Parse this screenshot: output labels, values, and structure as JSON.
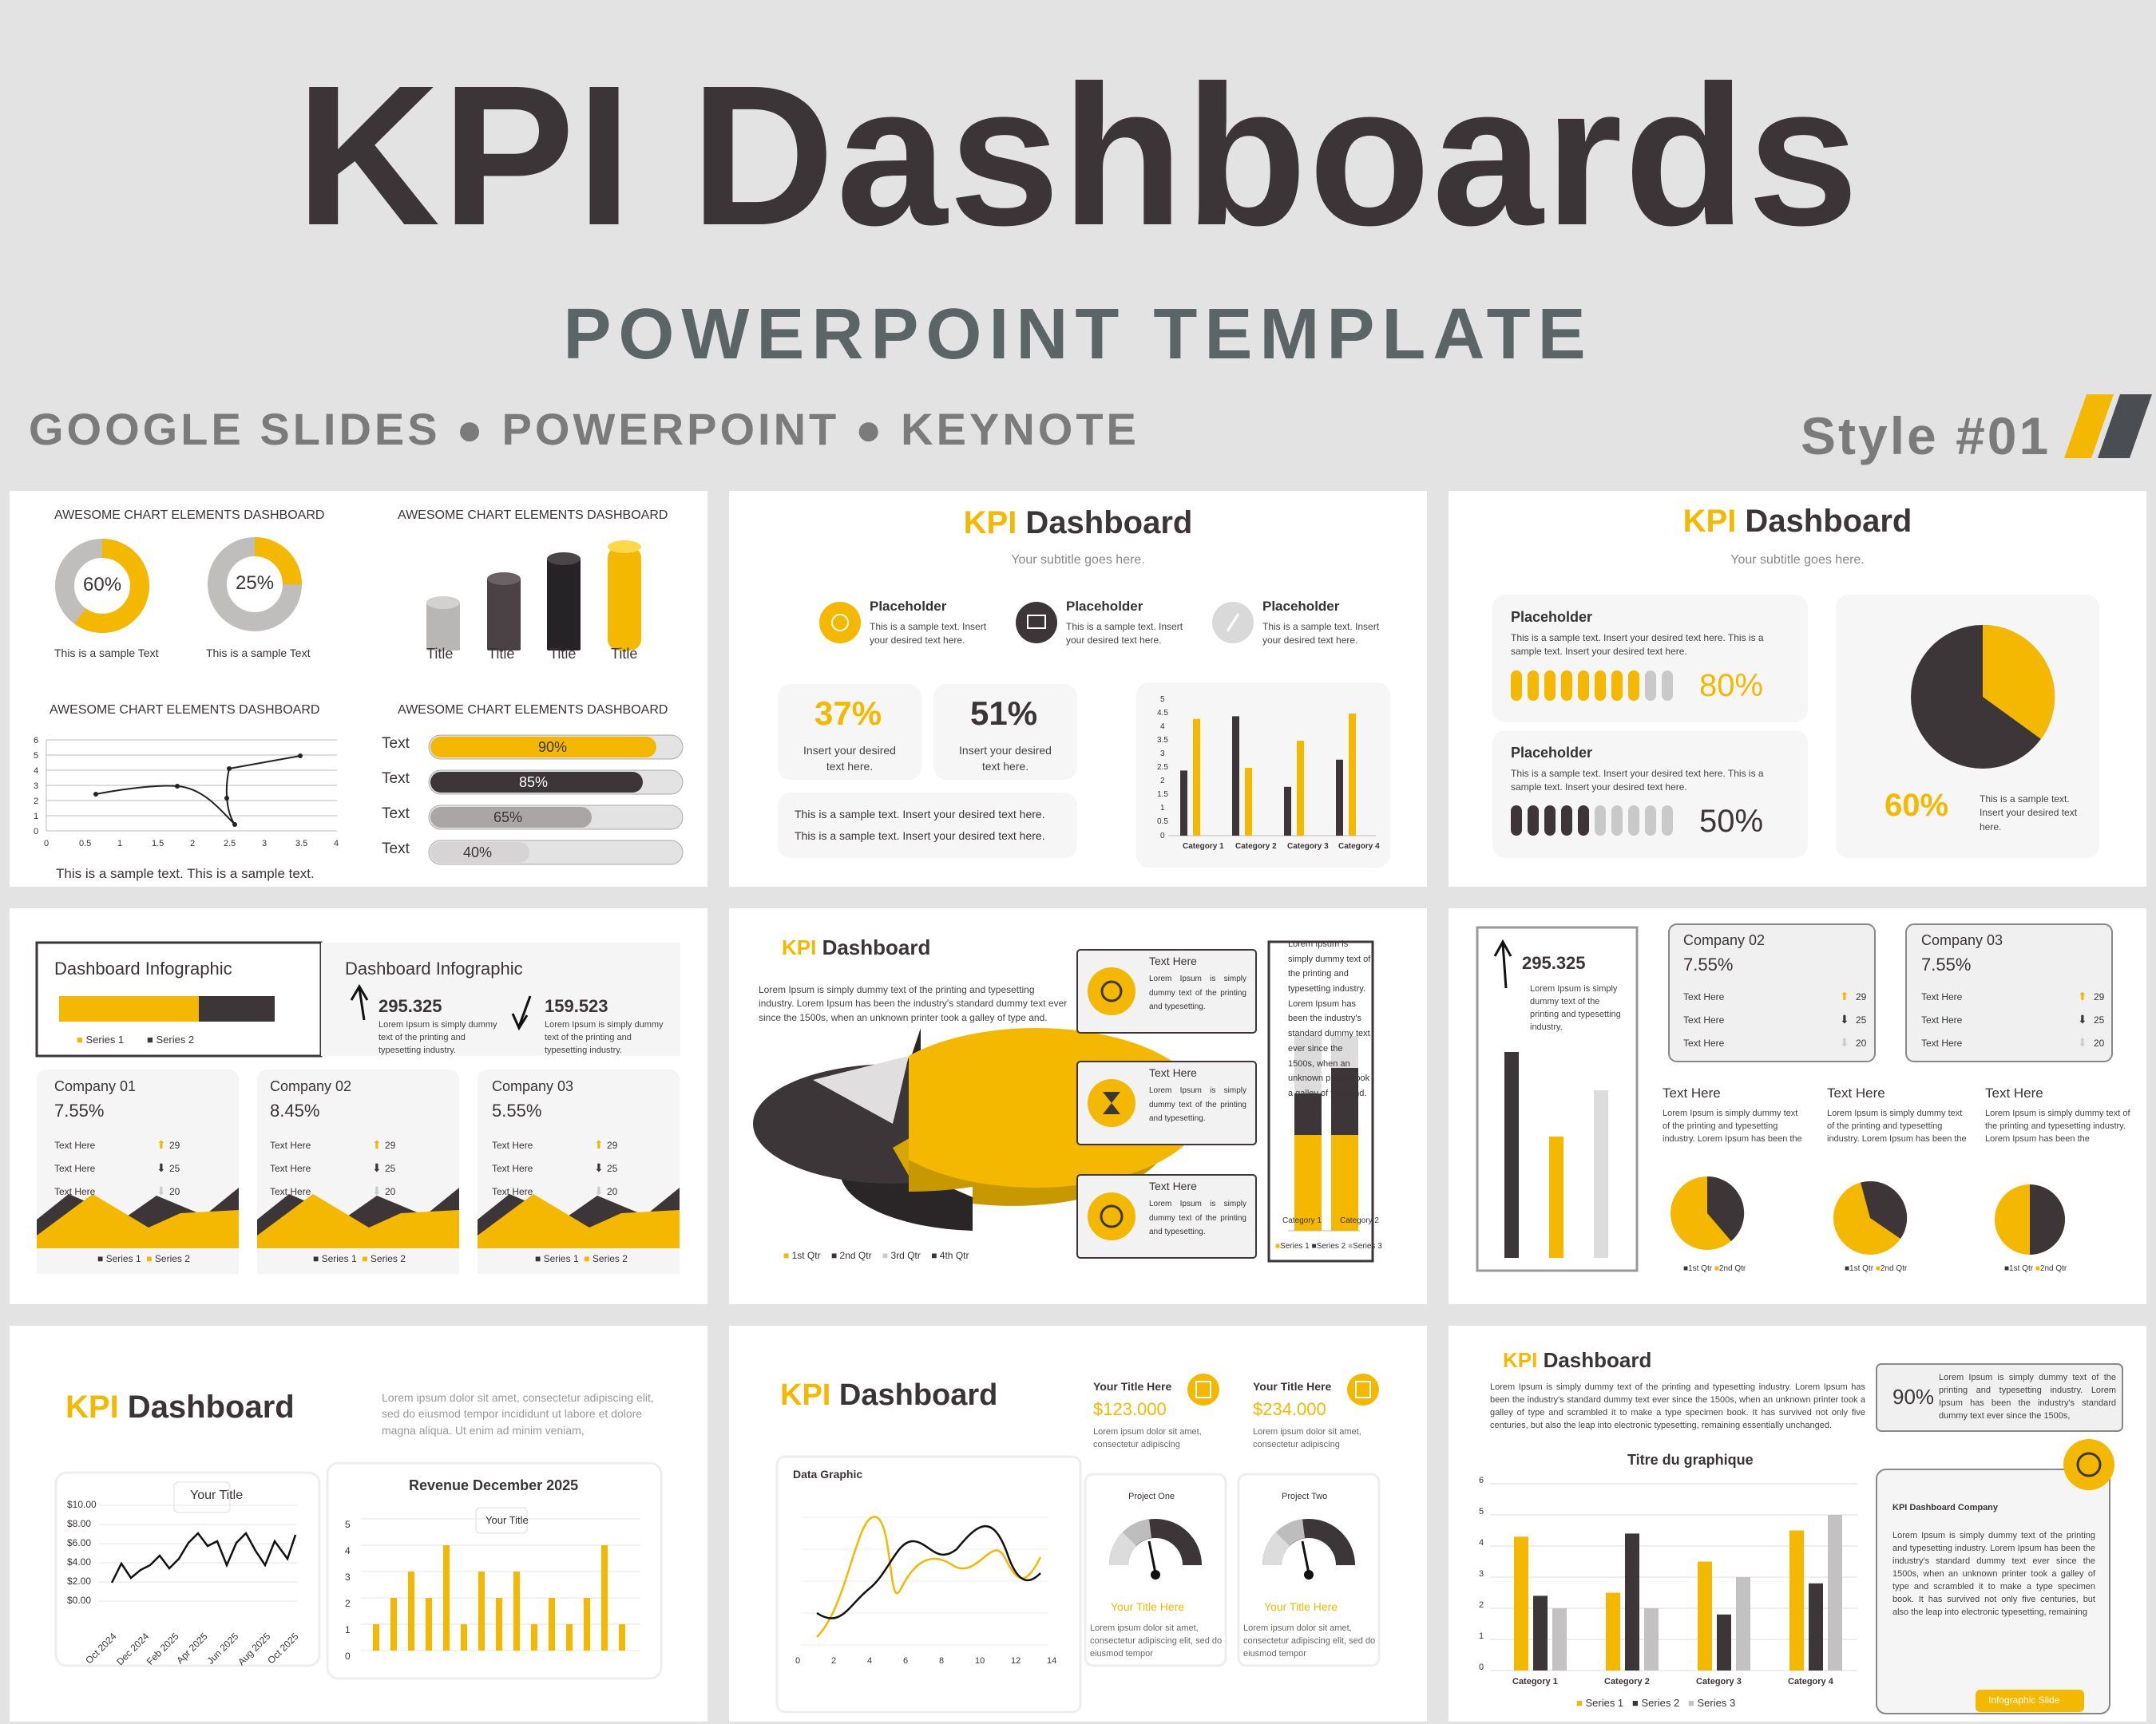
{
  "header": {
    "title": "KPI Dashboards",
    "subtitle": "POWERPOINT TEMPLATE",
    "platforms": "GOOGLE SLIDES ● POWERPOINT ● KEYNOTE",
    "style": "Style #01"
  },
  "colors": {
    "accent": "#f5b800",
    "dark": "#3b3537",
    "gray": "#b9b6b6",
    "light": "#d9d9d9"
  },
  "s1": {
    "heading": "AWESOME CHART ELEMENTS DASHBOARD",
    "donut1": "60%",
    "donut2": "25%",
    "sample": "This is a sample Text",
    "bar_label": "Title",
    "progress_label": "Text",
    "progress": [
      "90%",
      "85%",
      "65%",
      "40%"
    ],
    "footer": "This is a sample text.   This is a sample text."
  },
  "s2": {
    "title_hl": "KPI",
    "title": " Dashboard",
    "subtitle": "Your subtitle goes here.",
    "placeholder": "Placeholder",
    "placeholder_text": "This is a sample text. Insert your desired text here.",
    "kpi1": "37%",
    "kpi2": "51%",
    "kpi_text": "Insert your desired text here.",
    "note": "This is a sample text. Insert your desired text here.",
    "categories": [
      "Category 1",
      "Category 2",
      "Category 3",
      "Category 4"
    ]
  },
  "s3": {
    "title_hl": "KPI",
    "title": " Dashboard",
    "subtitle": "Your subtitle goes here.",
    "placeholder": "Placeholder",
    "text": "This is a sample text. Insert your desired text here. This is a sample text. Insert your desired text here.",
    "v1": "80%",
    "v2": "50%",
    "pie_pct": "60%",
    "pie_text": "This is a sample text. Insert your desired text here."
  },
  "s4": {
    "heading": "Dashboard Infographic",
    "n1": "295.325",
    "n2": "159.523",
    "lorem": "Lorem Ipsum is simply dummy text of the printing and typesetting industry.",
    "series1": "Series 1",
    "series2": "Series 2",
    "companies": [
      {
        "name": "Company 01",
        "pct": "7.55%"
      },
      {
        "name": "Company 02",
        "pct": "8.45%"
      },
      {
        "name": "Company 03",
        "pct": "5.55%"
      }
    ],
    "text_here": "Text Here",
    "vals": [
      "29",
      "25",
      "20"
    ]
  },
  "s5": {
    "title_hl": "KPI",
    "title": " Dashboard",
    "para": "Lorem Ipsum is simply dummy text of the printing and typesetting industry. Lorem Ipsum has been the industry's standard dummy text ever since the 1500s, when an unknown printer took a galley of type and.",
    "text_here": "Text Here",
    "card_text": "Lorem Ipsum is simply dummy text of the printing and typesetting.",
    "legend": [
      "1st Qtr",
      "2nd Qtr",
      "3rd Qtr",
      "4th Qtr"
    ],
    "cats": [
      "Category 1",
      "Category 2"
    ],
    "series": [
      "Series 1",
      "Series 2",
      "Series 3"
    ]
  },
  "s6": {
    "n": "295.325",
    "n_text": "Lorem Ipsum is simply dummy text of the printing and typesetting industry.",
    "companies": [
      {
        "name": "Company 02",
        "pct": "7.55%"
      },
      {
        "name": "Company 03",
        "pct": "7.55%"
      }
    ],
    "text_here": "Text Here",
    "vals": [
      "29",
      "25",
      "20"
    ],
    "col_text": "Lorem Ipsum is simply dummy text of the printing and typesetting industry. Lorem Ipsum has been the",
    "legend": [
      "1st Qtr",
      "2nd Qtr"
    ]
  },
  "s7": {
    "title_hl": "KPI",
    "title": " Dashboard",
    "lorem": "Lorem ipsum dolor sit amet, consectetur adipiscing elit, sed do eiusmod tempor incididunt ut labore et dolore magna aliqua. Ut enim ad minim veniam,",
    "your_title": "Your Title",
    "yticks": [
      "$10.00",
      "$8.00",
      "$6.00",
      "$4.00",
      "$2.00",
      "$0.00"
    ],
    "xticks": [
      "Oct 2024",
      "Dec 2024",
      "Feb 2025",
      "Apr 2025",
      "Jun 2025",
      "Aug 2025",
      "Oct 2025"
    ],
    "revenue_title": "Revenue December 2025",
    "rev_yticks": [
      "5",
      "4",
      "3",
      "2",
      "1",
      "0"
    ]
  },
  "s8": {
    "title_hl": "KPI",
    "title": " Dashboard",
    "your_title": "Your Title Here",
    "amount1": "$123.000",
    "amount2": "$234.000",
    "amount_text": "Lorem ipsum dolor sit amet, consectetur adipiscing",
    "data_graphic": "Data Graphic",
    "xticks": [
      "0",
      "2",
      "4",
      "6",
      "8",
      "10",
      "12",
      "14"
    ],
    "project1": "Project One",
    "project2": "Project Two",
    "your_title_short": "Your Title Here",
    "gauge_text": "Lorem ipsum dolor sit amet, consectetur adipiscing elit, sed do eiusmod tempor"
  },
  "s9": {
    "title_hl": "KPI",
    "title": " Dashboard",
    "para": "Lorem Ipsum is simply dummy text of the printing and typesetting industry. Lorem Ipsum has been the industry's standard dummy text ever since the 1500s, when an unknown printer took a galley of type and scrambled it to make a type specimen book. It has survived not only five centuries, but also the leap into electronic typesetting, remaining essentially unchanged.",
    "pct": "90%",
    "pct_text": "Lorem Ipsum is simply dummy text of the printing and typesetting industry. Lorem Ipsum has been the industry's standard dummy text ever since the 1500s,",
    "chart_title": "Titre du graphique",
    "yticks": [
      "6",
      "5",
      "4",
      "3",
      "2",
      "1",
      "0"
    ],
    "cats": [
      "Category 1",
      "Category 2",
      "Category 3",
      "Category 4"
    ],
    "series": [
      "Series 1",
      "Series 2",
      "Series 3"
    ],
    "company": "KPI Dashboard Company",
    "company_text": "Lorem Ipsum is simply dummy text of the printing and typesetting industry. Lorem Ipsum has been the industry's standard dummy text ever since the 1500s, when an unknown printer took a galley of type and scrambled it to make a type specimen book. It has survived not only five centuries, but also the leap into electronic typesetting, remaining",
    "button": "Infographic Slide"
  },
  "chart_data": [
    {
      "type": "bar",
      "categories": [
        "Category 1",
        "Category 2",
        "Category 3",
        "Category 4"
      ],
      "series": [
        {
          "values": [
            4.3,
            2.5,
            3.5,
            4.5
          ]
        },
        {
          "values": [
            2.4,
            4.4,
            1.8,
            2.8
          ]
        }
      ],
      "ylim": [
        0,
        5
      ]
    },
    {
      "type": "line",
      "title": "Your Title",
      "x": [
        "Oct 2024",
        "Dec 2024",
        "Feb 2025",
        "Apr 2025",
        "Jun 2025",
        "Aug 2025",
        "Oct 2025"
      ],
      "ylim": [
        0,
        10
      ]
    },
    {
      "type": "bar",
      "title": "Revenue December 2025",
      "ylim": [
        0,
        5
      ]
    },
    {
      "type": "bar",
      "title": "Titre du graphique",
      "categories": [
        "Category 1",
        "Category 2",
        "Category 3",
        "Category 4"
      ],
      "series": [
        {
          "name": "Series 1",
          "values": [
            4.3,
            2.5,
            3.5,
            4.5
          ]
        },
        {
          "name": "Series 2",
          "values": [
            2.4,
            4.4,
            1.8,
            2.8
          ]
        },
        {
          "name": "Series 3",
          "values": [
            2,
            2,
            3,
            5
          ]
        }
      ],
      "ylim": [
        0,
        6
      ]
    }
  ]
}
